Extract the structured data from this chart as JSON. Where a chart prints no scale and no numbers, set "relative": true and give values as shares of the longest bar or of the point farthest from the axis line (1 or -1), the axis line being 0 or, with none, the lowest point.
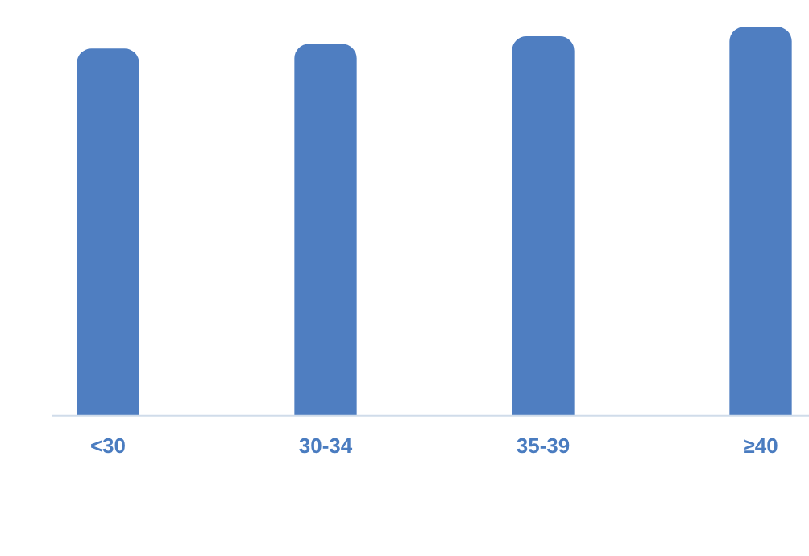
{
  "chart_data": {
    "type": "bar",
    "relative": true,
    "categories": [
      "<30",
      "30-34",
      "35-39",
      "≥40"
    ],
    "values": [
      0.944,
      0.956,
      0.976,
      1
    ],
    "color": "#4f7ec1",
    "grid": false,
    "legend": false
  }
}
